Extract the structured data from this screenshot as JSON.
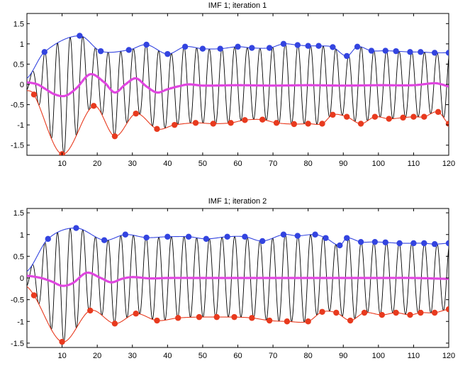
{
  "colors": {
    "signal": "#000000",
    "upper_envelope": "#3344e0",
    "lower_envelope": "#e83a1e",
    "mean": "#e046e0"
  },
  "chart_data": [
    {
      "type": "line",
      "title": "IMF 1;   iteration 1",
      "xlim": [
        0,
        120
      ],
      "ylim": [
        -1.75,
        1.75
      ],
      "xticks": [
        10,
        20,
        30,
        40,
        50,
        60,
        70,
        80,
        90,
        100,
        110,
        120
      ],
      "yticks": [
        -1.5,
        -1,
        -0.5,
        0,
        0.5,
        1,
        1.5
      ],
      "ytick_labels": [
        "-1.5",
        "-1",
        "-0.5",
        "0",
        "0.5",
        "1",
        "1.5"
      ],
      "grid": false,
      "signal_period": 3.6,
      "upper_envelope_x": [
        0,
        5,
        15,
        21,
        29,
        34,
        40,
        45,
        50,
        55,
        60,
        64,
        69,
        73,
        77,
        80,
        83,
        87,
        91,
        94,
        98,
        102,
        105,
        109,
        112,
        116,
        120
      ],
      "upper_envelope_y": [
        0.15,
        0.8,
        1.2,
        0.82,
        0.85,
        0.98,
        0.75,
        0.93,
        0.88,
        0.88,
        0.93,
        0.9,
        0.9,
        1.0,
        0.97,
        0.95,
        0.95,
        0.92,
        0.7,
        0.93,
        0.83,
        0.83,
        0.82,
        0.8,
        0.8,
        0.78,
        0.78
      ],
      "lower_envelope_x": [
        0,
        2,
        10,
        19,
        25,
        31,
        37,
        42,
        48,
        53,
        58,
        62,
        67,
        71,
        76,
        80,
        84,
        87,
        91,
        95,
        99,
        103,
        107,
        110,
        113,
        117,
        120
      ],
      "lower_envelope_y": [
        -0.15,
        -0.25,
        -1.72,
        -0.53,
        -1.28,
        -0.72,
        -1.1,
        -1.0,
        -0.95,
        -0.97,
        -0.95,
        -0.88,
        -0.87,
        -0.95,
        -0.98,
        -0.97,
        -0.97,
        -0.75,
        -0.8,
        -0.97,
        -0.8,
        -0.85,
        -0.82,
        -0.8,
        -0.8,
        -0.68,
        -0.97
      ],
      "mean_x": [
        0,
        3,
        5,
        8,
        11,
        14,
        18,
        22,
        25,
        28,
        31,
        34,
        37,
        40,
        43,
        46,
        50,
        60,
        70,
        80,
        90,
        100,
        110,
        116,
        118,
        120
      ],
      "mean_y": [
        0.05,
        0.0,
        -0.1,
        -0.25,
        -0.28,
        -0.1,
        0.25,
        0.05,
        -0.2,
        0.0,
        0.15,
        -0.05,
        -0.2,
        -0.12,
        -0.05,
        0.0,
        -0.03,
        -0.02,
        -0.03,
        -0.02,
        -0.03,
        -0.02,
        -0.02,
        0.03,
        0.0,
        -0.05
      ]
    },
    {
      "type": "line",
      "title": "IMF 1;   iteration 2",
      "xlim": [
        0,
        120
      ],
      "ylim": [
        -1.6,
        1.6
      ],
      "xticks": [
        10,
        20,
        30,
        40,
        50,
        60,
        70,
        80,
        90,
        100,
        110,
        120
      ],
      "yticks": [
        -1.5,
        -1,
        -0.5,
        0,
        0.5,
        1,
        1.5
      ],
      "ytick_labels": [
        "-1.5",
        "-1",
        "-0.5",
        "0",
        "0.5",
        "1",
        "1.5"
      ],
      "grid": false,
      "signal_period": 3.6,
      "upper_envelope_x": [
        0,
        6,
        14,
        22,
        28,
        34,
        40,
        46,
        51,
        57,
        62,
        67,
        73,
        77,
        82,
        85,
        89,
        91,
        95,
        99,
        102,
        106,
        110,
        113,
        116,
        120
      ],
      "upper_envelope_y": [
        0.15,
        0.9,
        1.15,
        0.87,
        1.0,
        0.93,
        0.95,
        0.95,
        0.9,
        0.95,
        0.95,
        0.85,
        1.0,
        0.97,
        1.0,
        0.92,
        0.75,
        0.92,
        0.83,
        0.83,
        0.82,
        0.8,
        0.8,
        0.8,
        0.78,
        0.8
      ],
      "lower_envelope_x": [
        0,
        2,
        10,
        18,
        25,
        31,
        37,
        43,
        49,
        54,
        59,
        64,
        69,
        74,
        80,
        84,
        88,
        92,
        96,
        101,
        105,
        109,
        112,
        116,
        120
      ],
      "lower_envelope_y": [
        -0.2,
        -0.4,
        -1.47,
        -0.75,
        -1.05,
        -0.82,
        -0.98,
        -0.92,
        -0.9,
        -0.9,
        -0.9,
        -0.92,
        -0.98,
        -1.0,
        -1.0,
        -0.78,
        -0.8,
        -0.98,
        -0.8,
        -0.85,
        -0.8,
        -0.85,
        -0.8,
        -0.8,
        -0.72
      ],
      "mean_x": [
        0,
        4,
        7,
        10,
        13,
        17,
        21,
        24,
        27,
        30,
        35,
        40,
        50,
        60,
        70,
        80,
        90,
        100,
        110,
        120
      ],
      "mean_y": [
        0.05,
        0.0,
        -0.08,
        -0.18,
        -0.12,
        0.12,
        0.0,
        -0.1,
        -0.02,
        0.02,
        -0.01,
        0.0,
        0.0,
        0.0,
        0.0,
        0.0,
        0.0,
        0.0,
        0.0,
        -0.02
      ]
    }
  ]
}
